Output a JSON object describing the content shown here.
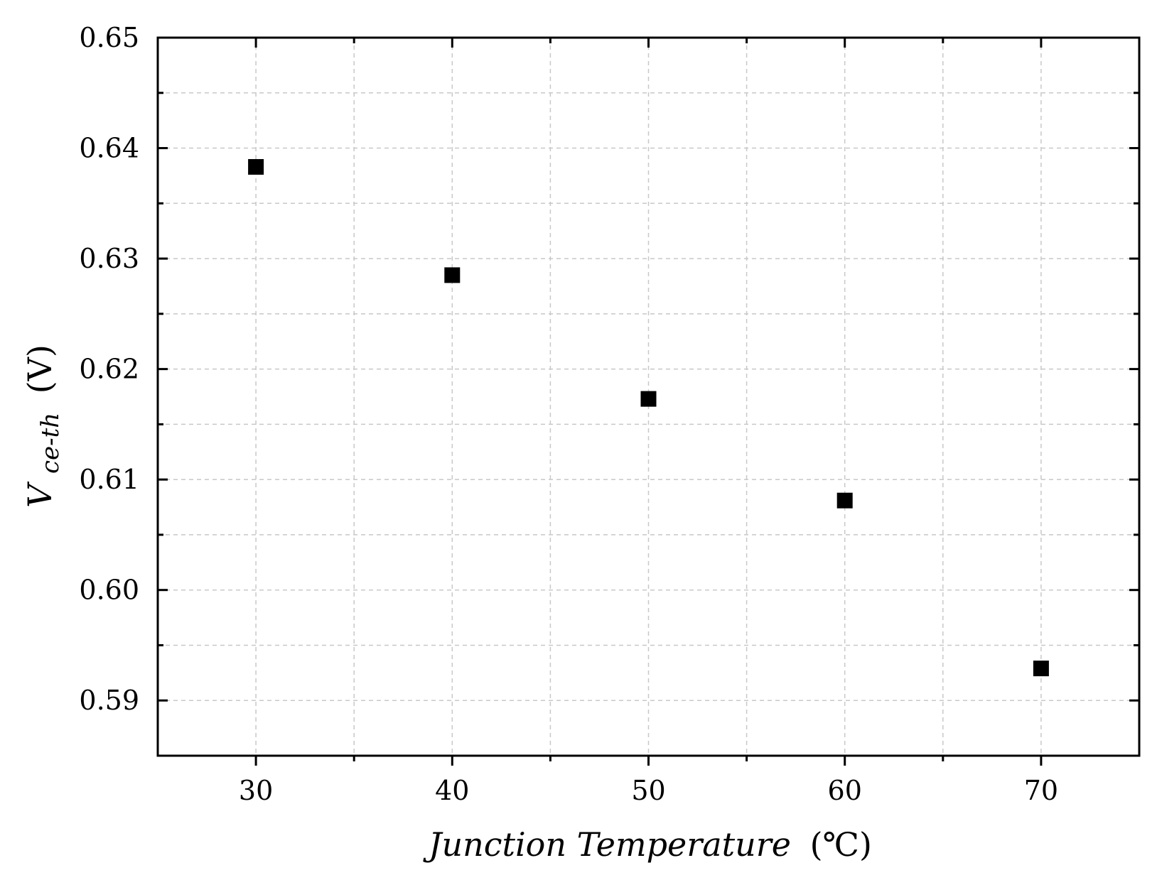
{
  "chart_data": {
    "type": "scatter",
    "xlabel": "Junction Temperature (℃)",
    "xlabel_main": "Junction Temperature",
    "xlabel_unit": "(℃)",
    "ylabel": "Vce-th (V)",
    "ylabel_main": "V",
    "ylabel_sub": "ce-th",
    "ylabel_unit": "(V)",
    "xlim": [
      25,
      75
    ],
    "ylim": [
      0.585,
      0.65
    ],
    "x_ticks": [
      30,
      40,
      50,
      60,
      70
    ],
    "x_tick_labels": [
      "30",
      "40",
      "50",
      "60",
      "70"
    ],
    "x_minor_ticks": [
      35,
      45,
      55,
      65
    ],
    "y_ticks": [
      0.59,
      0.6,
      0.61,
      0.62,
      0.63,
      0.64,
      0.65
    ],
    "y_tick_labels": [
      "0.59",
      "0.60",
      "0.61",
      "0.62",
      "0.63",
      "0.64",
      "0.65"
    ],
    "y_minor_ticks": [
      0.595,
      0.605,
      0.615,
      0.625,
      0.635,
      0.645
    ],
    "grid": true,
    "marker": "square",
    "marker_color": "#000000",
    "series": [
      {
        "x": [
          30,
          40,
          50,
          60,
          70
        ],
        "y": [
          0.6383,
          0.6285,
          0.6173,
          0.6081,
          0.5929
        ]
      }
    ]
  }
}
